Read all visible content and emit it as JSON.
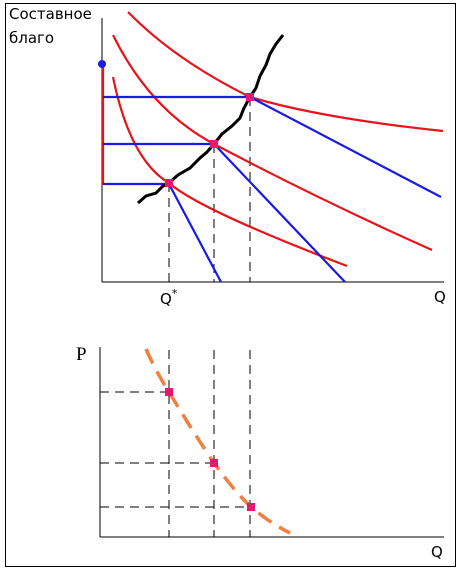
{
  "top_panel": {
    "y_axis_label_lines": [
      "Составное",
      "благо"
    ],
    "x_marker_label": "Q",
    "x_marker_sup": "*",
    "x_axis_label": "Q"
  },
  "bottom_panel": {
    "y_axis_label": "P",
    "x_axis_label": "Q"
  }
}
